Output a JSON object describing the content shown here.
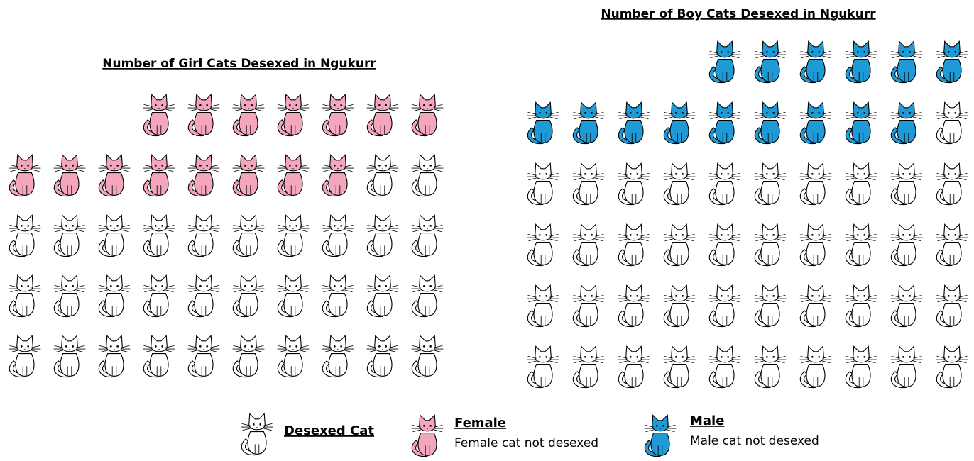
{
  "chart_data": [
    {
      "type": "pictograph",
      "title": "Number of Girl Cats Desexed in Ngukurr",
      "series": [
        {
          "color": "#f4a6bd",
          "values": [
            15
          ]
        },
        {
          "color": "#ffffff",
          "values": [
            32
          ]
        }
      ]
    },
    {
      "type": "pictograph",
      "title": "Number of Boy Cats Desexed in Ngukurr",
      "series": [
        {
          "color": "#1e9bd7",
          "values": [
            15
          ]
        },
        {
          "color": "#ffffff",
          "values": [
            41
          ]
        }
      ]
    }
  ],
  "legend": [
    {
      "title": "Desexed Cat",
      "color": "#ffffff"
    },
    {
      "title": "Female",
      "description": "Female cat not desexed",
      "color": "#f4a6bd"
    },
    {
      "title": "Male",
      "description": "Male cat not desexed",
      "color": "#1e9bd7"
    }
  ]
}
